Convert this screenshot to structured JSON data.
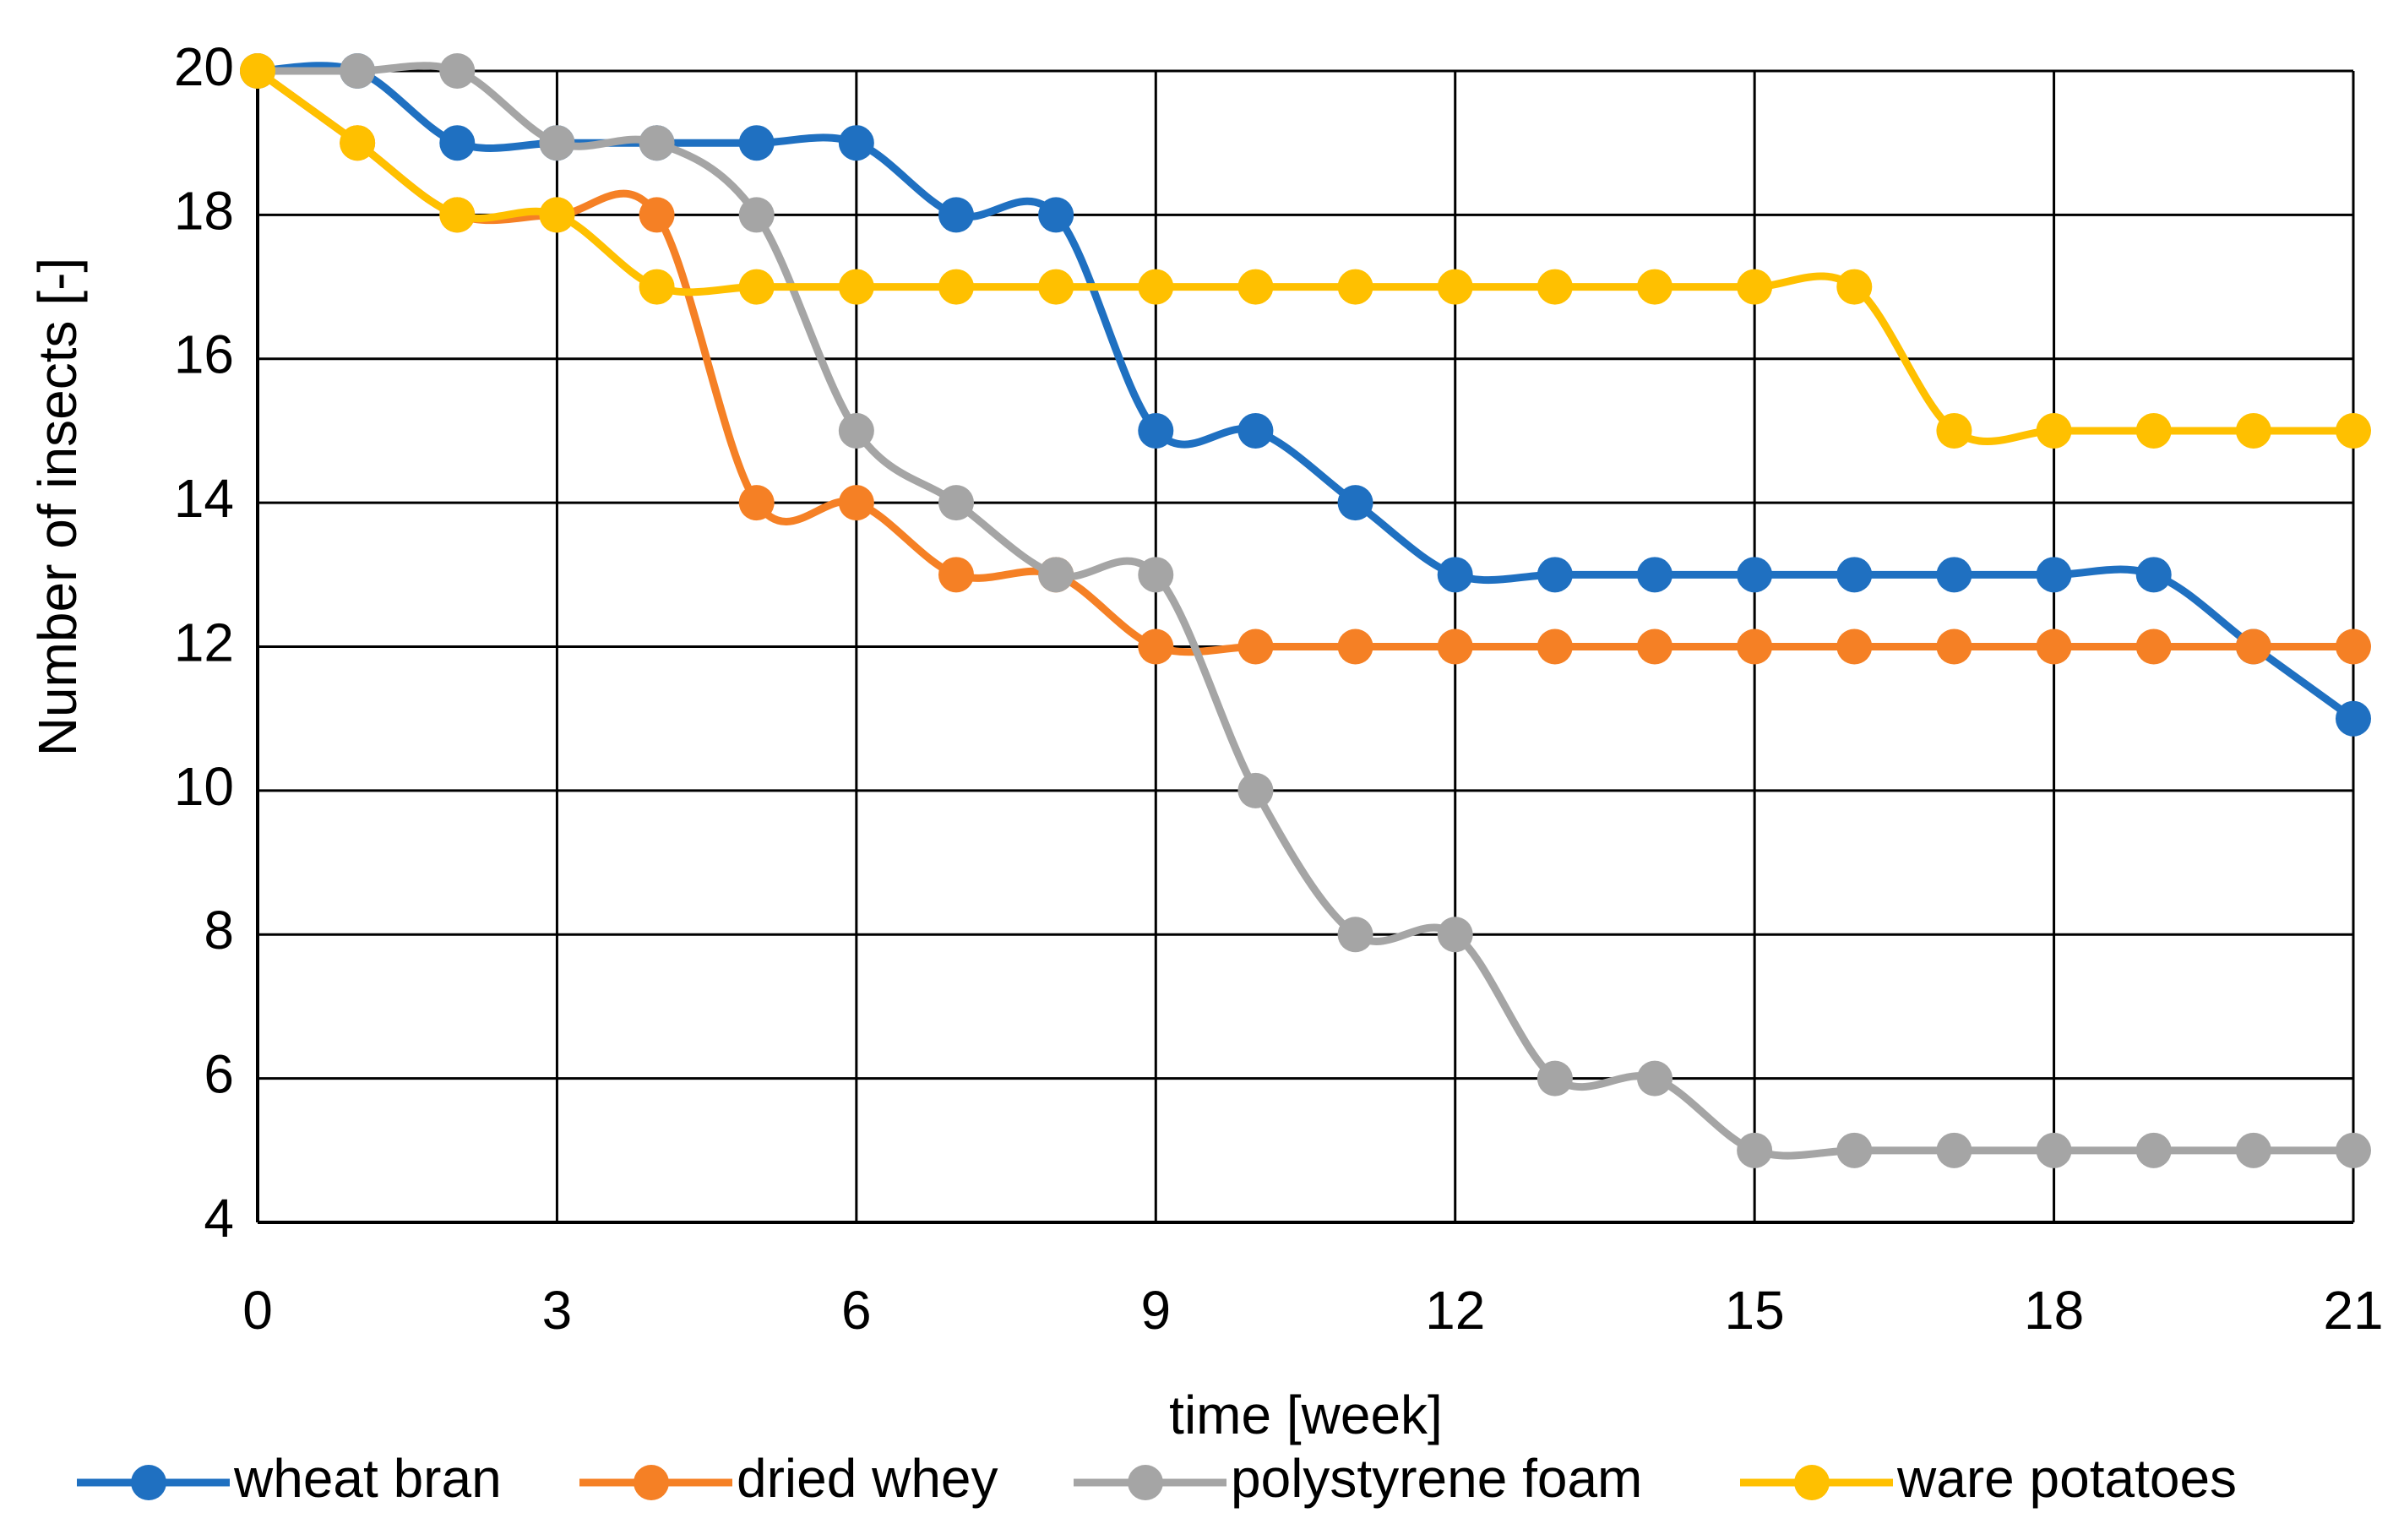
{
  "chart_data": {
    "type": "line",
    "x_label": "time [week]",
    "y_label": "Number of insects [-]",
    "x": [
      0,
      1,
      2,
      3,
      4,
      5,
      6,
      7,
      8,
      9,
      10,
      11,
      12,
      13,
      14,
      15,
      16,
      17,
      18,
      19,
      20,
      21
    ],
    "series": [
      {
        "name": "wheat bran",
        "color": "#1f70c1",
        "values": [
          20,
          20,
          19,
          19,
          19,
          19,
          19,
          18,
          18,
          15,
          15,
          14,
          13,
          13,
          13,
          13,
          13,
          13,
          13,
          13,
          12,
          11
        ]
      },
      {
        "name": "dried whey",
        "color": "#f58025",
        "values": [
          20,
          19,
          18,
          18,
          18,
          14,
          14,
          13,
          13,
          12,
          12,
          12,
          12,
          12,
          12,
          12,
          12,
          12,
          12,
          12,
          12,
          12
        ]
      },
      {
        "name": "polystyrene foam",
        "color": "#a5a5a5",
        "values": [
          20,
          20,
          20,
          19,
          19,
          18,
          15,
          14,
          13,
          13,
          10,
          8,
          8,
          6,
          6,
          5,
          5,
          5,
          5,
          5,
          5,
          5
        ]
      },
      {
        "name": "ware potatoes",
        "color": "#ffc000",
        "values": [
          20,
          19,
          18,
          18,
          17,
          17,
          17,
          17,
          17,
          17,
          17,
          17,
          17,
          17,
          17,
          17,
          17,
          15,
          15,
          15,
          15,
          15
        ]
      }
    ],
    "xlim": [
      0,
      21
    ],
    "xticks": [
      0,
      3,
      6,
      9,
      12,
      15,
      18,
      21
    ],
    "ylim": [
      4,
      20
    ],
    "yticks": [
      4,
      6,
      8,
      10,
      12,
      14,
      16,
      18,
      20
    ],
    "grid": true,
    "smooth": true,
    "markers": true,
    "legend": "bottom"
  }
}
